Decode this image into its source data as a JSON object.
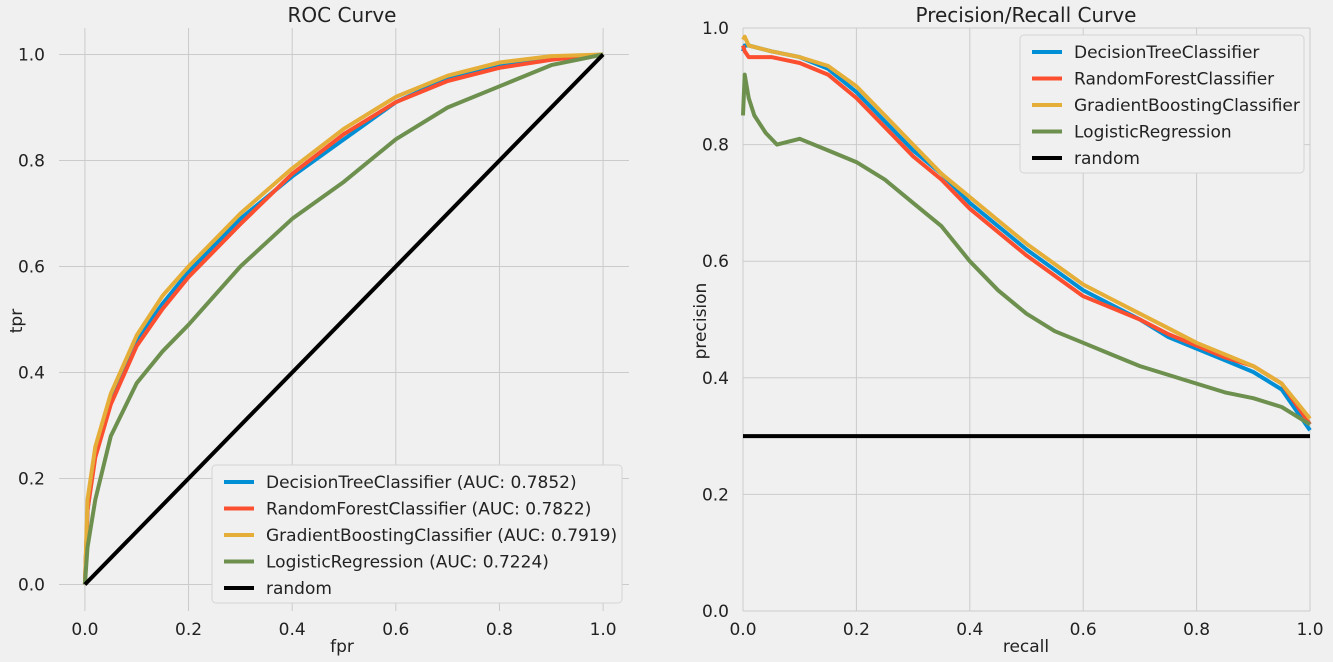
{
  "chart_data": [
    {
      "type": "line",
      "title": "ROC Curve",
      "xlabel": "fpr",
      "ylabel": "tpr",
      "xlim": [
        -0.05,
        1.05
      ],
      "ylim": [
        -0.05,
        1.05
      ],
      "xticks": [
        "0.0",
        "0.2",
        "0.4",
        "0.6",
        "0.8",
        "1.0"
      ],
      "yticks": [
        "0.0",
        "0.2",
        "0.4",
        "0.6",
        "0.8",
        "1.0"
      ],
      "grid": true,
      "legend_position": "lower-right",
      "series": [
        {
          "name": "DecisionTreeClassifier (AUC: 0.7852)",
          "color": "#008fd5",
          "x": [
            0,
            0.005,
            0.02,
            0.05,
            0.1,
            0.15,
            0.2,
            0.3,
            0.4,
            0.5,
            0.6,
            0.7,
            0.8,
            0.9,
            1.0
          ],
          "y": [
            0,
            0.14,
            0.25,
            0.35,
            0.46,
            0.53,
            0.59,
            0.69,
            0.77,
            0.84,
            0.91,
            0.955,
            0.98,
            0.995,
            1.0
          ]
        },
        {
          "name": "RandomForestClassifier (AUC: 0.7822)",
          "color": "#fc4f30",
          "x": [
            0,
            0.005,
            0.02,
            0.05,
            0.1,
            0.15,
            0.2,
            0.3,
            0.4,
            0.5,
            0.6,
            0.7,
            0.8,
            0.9,
            1.0
          ],
          "y": [
            0,
            0.14,
            0.24,
            0.34,
            0.45,
            0.52,
            0.58,
            0.68,
            0.775,
            0.85,
            0.91,
            0.95,
            0.975,
            0.99,
            1.0
          ]
        },
        {
          "name": "GradientBoostingClassifier (AUC: 0.7919)",
          "color": "#e5ae38",
          "x": [
            0,
            0.005,
            0.02,
            0.05,
            0.1,
            0.15,
            0.2,
            0.3,
            0.4,
            0.5,
            0.6,
            0.7,
            0.8,
            0.9,
            1.0
          ],
          "y": [
            0,
            0.16,
            0.26,
            0.36,
            0.47,
            0.545,
            0.6,
            0.7,
            0.785,
            0.86,
            0.92,
            0.96,
            0.985,
            0.997,
            1.0
          ]
        },
        {
          "name": "LogisticRegression (AUC: 0.7224)",
          "color": "#6d904f",
          "x": [
            0,
            0.005,
            0.02,
            0.05,
            0.1,
            0.15,
            0.2,
            0.3,
            0.4,
            0.5,
            0.6,
            0.7,
            0.8,
            0.9,
            1.0
          ],
          "y": [
            0,
            0.07,
            0.16,
            0.28,
            0.38,
            0.44,
            0.49,
            0.6,
            0.69,
            0.76,
            0.84,
            0.9,
            0.94,
            0.98,
            1.0
          ]
        },
        {
          "name": "random",
          "color": "#000000",
          "x": [
            0,
            1
          ],
          "y": [
            0,
            1
          ]
        }
      ]
    },
    {
      "type": "line",
      "title": "Precision/Recall Curve",
      "xlabel": "recall",
      "ylabel": "precision",
      "xlim": [
        0,
        1
      ],
      "ylim": [
        0,
        1
      ],
      "xticks": [
        "0.0",
        "0.2",
        "0.4",
        "0.6",
        "0.8",
        "1.0"
      ],
      "yticks": [
        "0.0",
        "0.2",
        "0.4",
        "0.6",
        "0.8",
        "1.0"
      ],
      "grid": true,
      "legend_position": "upper-right",
      "series": [
        {
          "name": "DecisionTreeClassifier",
          "color": "#008fd5",
          "x": [
            0,
            0.003,
            0.01,
            0.05,
            0.1,
            0.15,
            0.2,
            0.25,
            0.3,
            0.35,
            0.4,
            0.45,
            0.5,
            0.55,
            0.6,
            0.65,
            0.7,
            0.75,
            0.8,
            0.85,
            0.9,
            0.95,
            1.0
          ],
          "y": [
            0.96,
            0.97,
            0.97,
            0.96,
            0.95,
            0.93,
            0.89,
            0.84,
            0.79,
            0.75,
            0.7,
            0.66,
            0.62,
            0.585,
            0.55,
            0.525,
            0.5,
            0.47,
            0.45,
            0.43,
            0.41,
            0.38,
            0.31
          ]
        },
        {
          "name": "RandomForestClassifier",
          "color": "#fc4f30",
          "x": [
            0,
            0.003,
            0.01,
            0.05,
            0.1,
            0.15,
            0.2,
            0.25,
            0.3,
            0.35,
            0.4,
            0.45,
            0.5,
            0.55,
            0.6,
            0.65,
            0.7,
            0.75,
            0.8,
            0.85,
            0.9,
            0.95,
            1.0
          ],
          "y": [
            0.97,
            0.96,
            0.95,
            0.95,
            0.94,
            0.92,
            0.88,
            0.83,
            0.78,
            0.74,
            0.69,
            0.65,
            0.61,
            0.575,
            0.54,
            0.52,
            0.5,
            0.475,
            0.455,
            0.435,
            0.42,
            0.39,
            0.32
          ]
        },
        {
          "name": "GradientBoostingClassifier",
          "color": "#e5ae38",
          "x": [
            0,
            0.003,
            0.01,
            0.05,
            0.1,
            0.15,
            0.2,
            0.25,
            0.3,
            0.35,
            0.4,
            0.45,
            0.5,
            0.55,
            0.6,
            0.65,
            0.7,
            0.75,
            0.8,
            0.85,
            0.9,
            0.95,
            1.0
          ],
          "y": [
            0.98,
            0.985,
            0.97,
            0.96,
            0.95,
            0.935,
            0.9,
            0.85,
            0.8,
            0.75,
            0.71,
            0.67,
            0.63,
            0.595,
            0.56,
            0.535,
            0.51,
            0.485,
            0.46,
            0.44,
            0.42,
            0.39,
            0.33
          ]
        },
        {
          "name": "LogisticRegression",
          "color": "#6d904f",
          "x": [
            0,
            0.003,
            0.01,
            0.02,
            0.04,
            0.06,
            0.1,
            0.15,
            0.2,
            0.25,
            0.3,
            0.35,
            0.4,
            0.45,
            0.5,
            0.55,
            0.6,
            0.65,
            0.7,
            0.75,
            0.8,
            0.85,
            0.9,
            0.95,
            1.0
          ],
          "y": [
            0.85,
            0.92,
            0.88,
            0.85,
            0.82,
            0.8,
            0.81,
            0.79,
            0.77,
            0.74,
            0.7,
            0.66,
            0.6,
            0.55,
            0.51,
            0.48,
            0.46,
            0.44,
            0.42,
            0.405,
            0.39,
            0.375,
            0.365,
            0.35,
            0.32
          ]
        },
        {
          "name": "random",
          "color": "#000000",
          "x": [
            0,
            1
          ],
          "y": [
            0.3,
            0.3
          ]
        }
      ]
    }
  ]
}
